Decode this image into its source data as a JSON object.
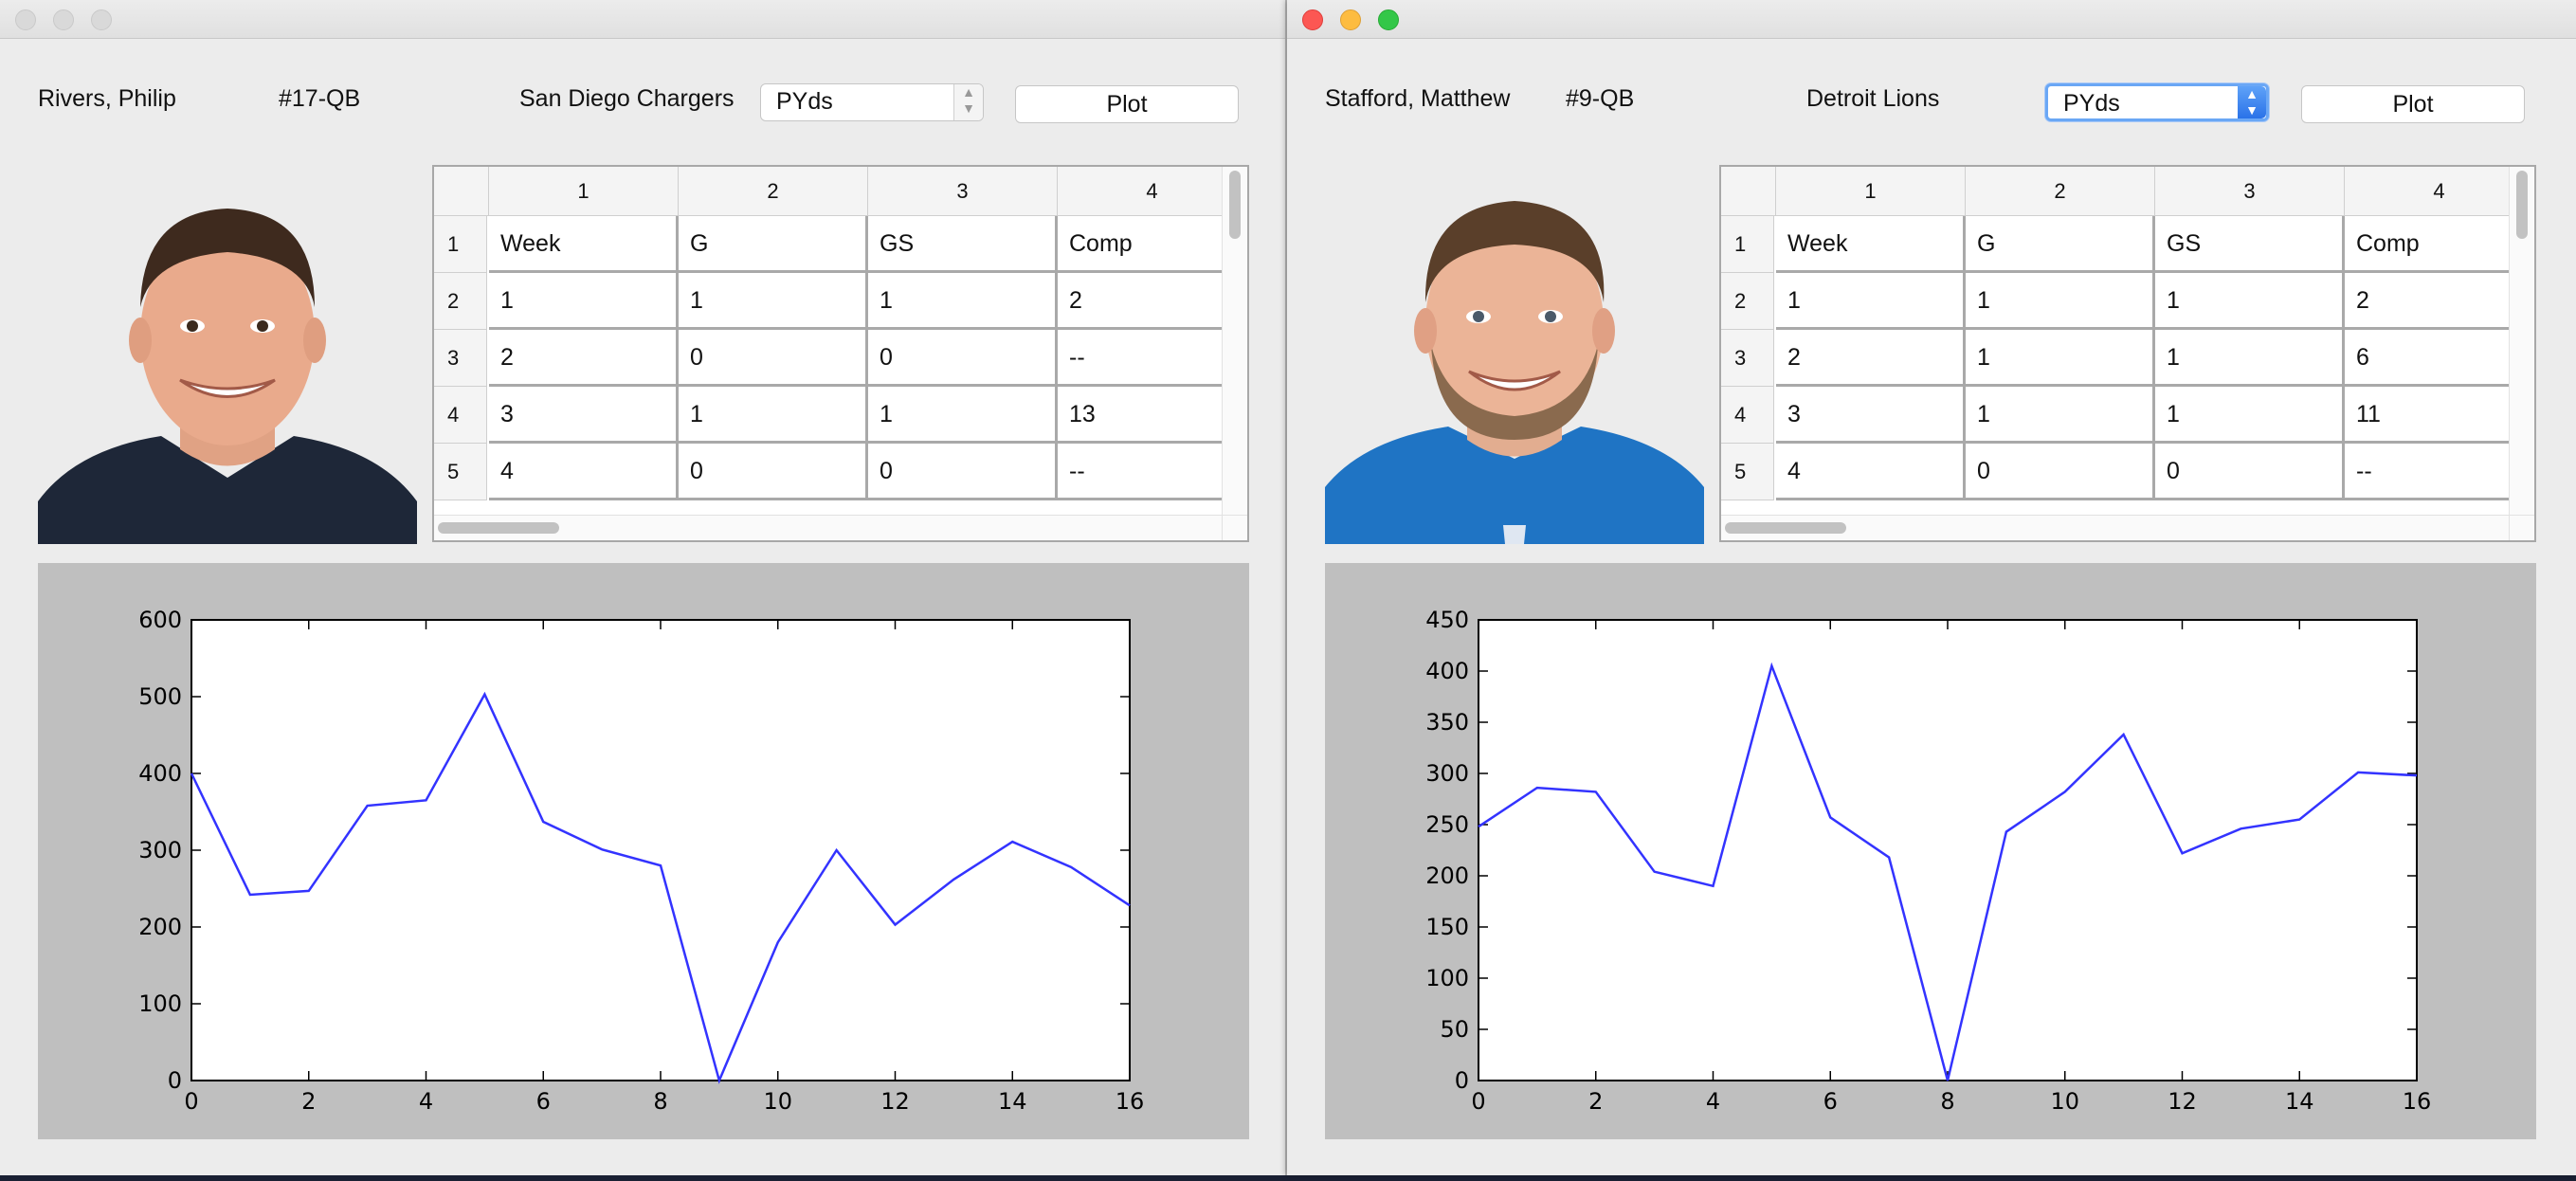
{
  "windows": [
    {
      "id": "left",
      "player_name": "Rivers, Philip",
      "number_position": "#17-QB",
      "team": "San Diego Chargers",
      "stat_select": {
        "selected": "PYds"
      },
      "plot_button": "Plot",
      "photo_icon": "player-headshot-rivers",
      "table": {
        "column_headers": [
          "1",
          "2",
          "3",
          "4"
        ],
        "row_headers": [
          "1",
          "2",
          "3",
          "4",
          "5"
        ],
        "rows": [
          [
            "Week",
            "G",
            "GS",
            "Comp"
          ],
          [
            "1",
            "1",
            "1",
            "2"
          ],
          [
            "2",
            "0",
            "0",
            "--"
          ],
          [
            "3",
            "1",
            "1",
            "13"
          ],
          [
            "4",
            "0",
            "0",
            "--"
          ]
        ]
      },
      "chart_data": {
        "type": "line",
        "x": [
          0,
          1,
          2,
          3,
          4,
          5,
          6,
          7,
          8,
          9,
          10,
          11,
          12,
          13,
          14,
          15,
          16
        ],
        "series": [
          {
            "values": [
              400,
              242,
              247,
              358,
              365,
              503,
              337,
              301,
              280,
              0,
              180,
              300,
              203,
              262,
              311,
              278,
              228
            ]
          }
        ],
        "xlim": [
          0,
          16
        ],
        "ylim": [
          0,
          600
        ],
        "xticks": [
          "0",
          "2",
          "4",
          "6",
          "8",
          "10",
          "12",
          "14",
          "16"
        ],
        "yticks": [
          "0",
          "100",
          "200",
          "300",
          "400",
          "500",
          "600"
        ],
        "line_color": "#3333ff"
      }
    },
    {
      "id": "right",
      "player_name": "Stafford, Matthew",
      "number_position": "#9-QB",
      "team": "Detroit Lions",
      "stat_select": {
        "selected": "PYds"
      },
      "plot_button": "Plot",
      "photo_icon": "player-headshot-stafford",
      "table": {
        "column_headers": [
          "1",
          "2",
          "3",
          "4"
        ],
        "row_headers": [
          "1",
          "2",
          "3",
          "4",
          "5"
        ],
        "rows": [
          [
            "Week",
            "G",
            "GS",
            "Comp"
          ],
          [
            "1",
            "1",
            "1",
            "2"
          ],
          [
            "2",
            "1",
            "1",
            "6"
          ],
          [
            "3",
            "1",
            "1",
            "11"
          ],
          [
            "4",
            "0",
            "0",
            "--"
          ]
        ]
      },
      "chart_data": {
        "type": "line",
        "x": [
          0,
          1,
          2,
          3,
          4,
          5,
          6,
          7,
          8,
          9,
          10,
          11,
          12,
          13,
          14,
          15,
          16
        ],
        "series": [
          {
            "values": [
              248,
              286,
              282,
              204,
              190,
              405,
              257,
              218,
              0,
              243,
              282,
              338,
              222,
              246,
              255,
              301,
              298
            ]
          }
        ],
        "xlim": [
          0,
          16
        ],
        "ylim": [
          0,
          450
        ],
        "xticks": [
          "0",
          "2",
          "4",
          "6",
          "8",
          "10",
          "12",
          "14",
          "16"
        ],
        "yticks": [
          "0",
          "50",
          "100",
          "150",
          "200",
          "250",
          "300",
          "350",
          "400",
          "450"
        ],
        "line_color": "#3333ff"
      }
    }
  ]
}
